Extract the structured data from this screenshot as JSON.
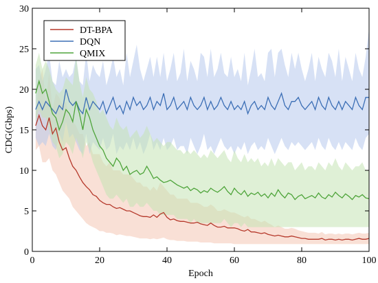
{
  "chart_data": {
    "type": "line",
    "title": "",
    "xlabel": "Epoch",
    "ylabel": "CDG(Gbps)",
    "xlim": [
      0,
      100
    ],
    "ylim": [
      0,
      30
    ],
    "xticks": [
      0,
      20,
      40,
      60,
      80,
      100
    ],
    "yticks": [
      0,
      5,
      10,
      15,
      20,
      25,
      30
    ],
    "grid": false,
    "legend_position": "top-left",
    "x": [
      1,
      2,
      3,
      4,
      5,
      6,
      7,
      8,
      9,
      10,
      11,
      12,
      13,
      14,
      15,
      16,
      17,
      18,
      19,
      20,
      21,
      22,
      23,
      24,
      25,
      26,
      27,
      28,
      29,
      30,
      31,
      32,
      33,
      34,
      35,
      36,
      37,
      38,
      39,
      40,
      41,
      42,
      43,
      44,
      45,
      46,
      47,
      48,
      49,
      50,
      51,
      52,
      53,
      54,
      55,
      56,
      57,
      58,
      59,
      60,
      61,
      62,
      63,
      64,
      65,
      66,
      67,
      68,
      69,
      70,
      71,
      72,
      73,
      74,
      75,
      76,
      77,
      78,
      79,
      80,
      81,
      82,
      83,
      84,
      85,
      86,
      87,
      88,
      89,
      90,
      91,
      92,
      93,
      94,
      95,
      96,
      97,
      98,
      99,
      100
    ],
    "series": [
      {
        "name": "DT-BPA",
        "color": "#b5382a",
        "band_color": "#f4c7b5",
        "values": [
          15.5,
          16.8,
          15.5,
          15.0,
          16.5,
          14.5,
          15.2,
          13.5,
          12.5,
          12.8,
          11.5,
          10.5,
          10.0,
          9.2,
          8.5,
          8.0,
          7.6,
          7.0,
          6.8,
          6.3,
          6.0,
          5.8,
          5.8,
          5.5,
          5.3,
          5.4,
          5.2,
          5.0,
          5.0,
          4.8,
          4.6,
          4.4,
          4.3,
          4.3,
          4.2,
          4.5,
          4.2,
          4.6,
          4.8,
          4.2,
          3.9,
          4.0,
          3.8,
          3.7,
          3.7,
          3.6,
          3.5,
          3.5,
          3.6,
          3.4,
          3.3,
          3.2,
          3.5,
          3.2,
          3.0,
          3.0,
          3.1,
          2.9,
          2.9,
          2.9,
          2.8,
          2.6,
          2.5,
          2.7,
          2.4,
          2.4,
          2.3,
          2.2,
          2.3,
          2.1,
          2.0,
          1.9,
          2.0,
          1.9,
          1.8,
          1.8,
          1.9,
          1.8,
          1.7,
          1.6,
          1.6,
          1.5,
          1.5,
          1.5,
          1.5,
          1.6,
          1.4,
          1.5,
          1.5,
          1.4,
          1.5,
          1.4,
          1.5,
          1.5,
          1.4,
          1.5,
          1.6,
          1.5,
          1.5,
          1.6
        ],
        "upper": [
          17.0,
          21.0,
          22.5,
          18.5,
          22.0,
          17.5,
          19.5,
          19.0,
          18.0,
          18.5,
          16.5,
          16.0,
          15.5,
          14.5,
          14.5,
          13.0,
          13.5,
          12.0,
          12.0,
          12.0,
          11.0,
          10.5,
          11.0,
          10.0,
          10.0,
          10.0,
          9.5,
          9.5,
          9.5,
          9.0,
          8.5,
          8.5,
          8.0,
          8.0,
          7.5,
          8.0,
          7.5,
          8.5,
          8.0,
          7.5,
          7.0,
          7.0,
          6.5,
          6.5,
          6.5,
          6.5,
          6.0,
          6.0,
          6.0,
          5.8,
          5.5,
          5.5,
          5.8,
          5.5,
          5.0,
          5.0,
          5.2,
          5.0,
          4.8,
          4.8,
          4.6,
          4.4,
          4.2,
          4.4,
          4.0,
          4.0,
          3.8,
          3.6,
          3.8,
          3.5,
          3.3,
          3.0,
          3.2,
          3.0,
          2.8,
          2.8,
          2.9,
          2.8,
          2.6,
          2.5,
          2.4,
          2.3,
          2.3,
          2.3,
          2.2,
          2.4,
          2.1,
          2.2,
          2.2,
          2.1,
          2.2,
          2.1,
          2.2,
          2.2,
          2.1,
          2.2,
          2.3,
          2.2,
          2.2,
          2.3
        ],
        "lower": [
          12.5,
          13.0,
          11.0,
          11.0,
          11.5,
          10.0,
          9.5,
          8.5,
          7.5,
          7.0,
          6.5,
          5.5,
          5.0,
          4.5,
          4.0,
          3.5,
          3.2,
          3.0,
          2.8,
          2.5,
          2.5,
          2.3,
          2.3,
          2.2,
          2.0,
          2.1,
          2.0,
          1.9,
          1.9,
          1.8,
          1.7,
          1.6,
          1.6,
          1.6,
          1.5,
          1.6,
          1.5,
          1.6,
          1.7,
          1.5,
          1.4,
          1.4,
          1.3,
          1.3,
          1.3,
          1.2,
          1.2,
          1.2,
          1.2,
          1.1,
          1.1,
          1.1,
          1.1,
          1.0,
          1.0,
          1.0,
          1.0,
          1.0,
          1.0,
          0.9,
          0.9,
          0.9,
          0.9,
          0.9,
          0.9,
          0.9,
          0.9,
          0.9,
          0.9,
          0.9,
          0.9,
          0.9,
          0.9,
          0.9,
          0.9,
          0.9,
          0.9,
          0.9,
          0.9,
          0.9,
          0.9,
          0.9,
          0.9,
          0.9,
          0.9,
          0.9,
          0.9,
          0.9,
          0.9,
          0.9,
          0.9,
          0.9,
          0.9,
          0.9,
          0.9,
          0.9,
          0.9,
          0.9,
          0.9,
          0.9
        ]
      },
      {
        "name": "DQN",
        "color": "#3b6eb5",
        "band_color": "#b7c9ec",
        "values": [
          17.5,
          18.5,
          17.5,
          18.5,
          18.0,
          17.5,
          17.0,
          18.0,
          17.5,
          20.0,
          18.5,
          18.0,
          18.5,
          17.5,
          17.0,
          19.0,
          17.5,
          18.5,
          18.0,
          17.5,
          18.5,
          17.0,
          18.0,
          19.0,
          17.5,
          18.0,
          17.0,
          18.5,
          17.5,
          19.0,
          18.0,
          18.5,
          17.5,
          18.0,
          19.0,
          17.5,
          18.5,
          18.0,
          19.5,
          17.5,
          18.0,
          19.0,
          17.5,
          18.0,
          18.5,
          17.5,
          19.0,
          18.0,
          17.5,
          18.0,
          19.0,
          17.5,
          18.5,
          17.5,
          18.0,
          19.0,
          18.0,
          17.5,
          18.5,
          17.5,
          18.0,
          17.5,
          18.5,
          17.0,
          18.0,
          18.5,
          17.5,
          18.0,
          17.5,
          19.0,
          18.0,
          17.5,
          18.5,
          19.5,
          18.0,
          17.5,
          18.5,
          18.5,
          19.0,
          18.0,
          17.5,
          18.0,
          18.5,
          17.5,
          19.0,
          18.0,
          17.5,
          19.0,
          18.0,
          17.5,
          18.5,
          17.5,
          18.5,
          18.0,
          17.5,
          19.0,
          18.0,
          17.5,
          19.0,
          19.0
        ],
        "upper": [
          22.5,
          23.0,
          21.0,
          22.5,
          24.5,
          21.0,
          20.5,
          23.5,
          21.5,
          22.5,
          21.5,
          22.0,
          24.0,
          21.0,
          20.5,
          24.5,
          21.0,
          23.0,
          22.0,
          21.5,
          23.5,
          20.5,
          22.0,
          24.0,
          21.5,
          22.5,
          20.5,
          24.5,
          21.5,
          23.5,
          25.5,
          22.5,
          21.0,
          22.5,
          24.0,
          21.5,
          24.0,
          21.5,
          24.5,
          21.0,
          22.5,
          24.5,
          21.0,
          22.0,
          25.0,
          21.0,
          23.5,
          22.5,
          21.0,
          24.5,
          24.0,
          21.5,
          25.0,
          21.5,
          22.5,
          24.5,
          22.0,
          21.5,
          24.0,
          21.5,
          22.5,
          21.0,
          24.5,
          20.5,
          22.5,
          25.0,
          21.5,
          22.0,
          21.0,
          24.5,
          25.0,
          21.5,
          24.5,
          25.0,
          23.0,
          21.5,
          24.5,
          22.5,
          24.5,
          22.5,
          21.0,
          22.5,
          24.5,
          21.0,
          24.0,
          22.5,
          21.5,
          24.5,
          23.5,
          21.5,
          25.0,
          21.0,
          24.0,
          22.5,
          21.0,
          24.5,
          22.5,
          21.5,
          24.0,
          27.5
        ],
        "lower": [
          14.0,
          13.0,
          13.5,
          13.0,
          14.5,
          13.0,
          12.5,
          14.5,
          13.5,
          16.0,
          14.0,
          14.5,
          13.5,
          12.5,
          12.0,
          14.5,
          12.0,
          13.5,
          13.0,
          12.5,
          14.0,
          12.5,
          13.0,
          14.5,
          12.0,
          13.0,
          12.5,
          13.5,
          12.5,
          14.0,
          12.5,
          13.5,
          12.0,
          13.0,
          14.5,
          12.5,
          13.5,
          12.5,
          14.0,
          12.5,
          13.0,
          14.0,
          12.5,
          13.0,
          13.0,
          12.0,
          14.0,
          13.0,
          12.0,
          13.0,
          14.5,
          12.5,
          13.0,
          12.0,
          13.0,
          14.0,
          13.0,
          12.5,
          13.0,
          12.0,
          13.0,
          12.5,
          13.5,
          12.0,
          13.0,
          13.5,
          12.5,
          13.0,
          12.5,
          14.0,
          13.0,
          12.0,
          13.0,
          14.0,
          13.0,
          12.5,
          13.5,
          13.0,
          13.5,
          13.0,
          12.5,
          13.0,
          13.5,
          12.5,
          14.0,
          13.0,
          12.5,
          14.0,
          13.0,
          12.5,
          13.5,
          12.5,
          13.5,
          13.0,
          12.5,
          14.0,
          13.0,
          12.5,
          14.0,
          14.5
        ]
      },
      {
        "name": "QMIX",
        "color": "#4ea43a",
        "band_color": "#c5e3b5",
        "values": [
          19.5,
          21.0,
          19.5,
          20.0,
          18.5,
          17.0,
          16.5,
          15.0,
          16.0,
          17.5,
          17.0,
          16.0,
          18.5,
          17.0,
          15.0,
          17.5,
          16.5,
          15.0,
          14.0,
          13.0,
          12.5,
          11.5,
          11.0,
          10.5,
          11.5,
          11.0,
          10.0,
          10.5,
          9.5,
          9.8,
          10.0,
          9.5,
          9.7,
          10.5,
          9.8,
          9.0,
          9.2,
          8.8,
          8.5,
          8.6,
          8.8,
          8.5,
          8.2,
          8.0,
          7.8,
          8.0,
          7.5,
          7.8,
          7.6,
          7.2,
          7.5,
          7.3,
          7.8,
          7.5,
          7.3,
          7.6,
          8.0,
          7.4,
          7.0,
          7.8,
          7.3,
          7.0,
          7.5,
          6.8,
          7.2,
          7.0,
          7.3,
          6.8,
          7.1,
          6.6,
          7.2,
          6.8,
          7.6,
          7.0,
          6.6,
          7.2,
          7.0,
          6.4,
          6.8,
          7.0,
          6.5,
          6.7,
          6.9,
          6.6,
          7.2,
          6.7,
          6.5,
          7.0,
          6.7,
          7.3,
          6.9,
          6.6,
          7.1,
          6.8,
          6.4,
          6.9,
          6.7,
          7.0,
          6.6,
          6.5
        ],
        "upper": [
          23.0,
          24.5,
          22.5,
          23.5,
          22.5,
          21.0,
          20.0,
          19.5,
          20.0,
          21.5,
          21.0,
          20.5,
          24.0,
          21.0,
          19.0,
          21.5,
          20.0,
          19.5,
          18.5,
          17.0,
          17.5,
          16.5,
          15.5,
          15.0,
          16.5,
          15.5,
          15.0,
          15.5,
          14.0,
          14.5,
          15.0,
          14.0,
          14.5,
          15.5,
          14.5,
          13.5,
          14.0,
          13.5,
          13.0,
          13.5,
          13.5,
          13.0,
          12.5,
          12.5,
          12.0,
          12.5,
          12.0,
          12.5,
          12.0,
          11.5,
          12.0,
          11.5,
          12.5,
          12.0,
          11.5,
          12.0,
          12.5,
          11.5,
          11.0,
          12.5,
          11.5,
          11.0,
          12.0,
          11.0,
          11.5,
          11.0,
          11.5,
          10.5,
          11.0,
          10.5,
          11.5,
          10.5,
          11.5,
          11.0,
          10.5,
          11.0,
          11.0,
          10.0,
          10.5,
          11.0,
          10.0,
          10.5,
          10.5,
          10.0,
          11.0,
          10.5,
          10.0,
          11.0,
          10.5,
          11.5,
          10.5,
          10.0,
          11.0,
          10.5,
          10.0,
          10.5,
          10.5,
          11.0,
          10.0,
          10.0
        ],
        "lower": [
          16.0,
          17.5,
          16.5,
          16.5,
          15.0,
          13.5,
          13.0,
          11.5,
          12.0,
          13.5,
          13.0,
          12.0,
          14.0,
          13.0,
          11.5,
          13.5,
          12.5,
          11.0,
          10.0,
          9.0,
          8.0,
          7.0,
          6.5,
          6.5,
          7.0,
          6.5,
          6.0,
          6.5,
          5.5,
          5.5,
          6.0,
          5.5,
          5.5,
          6.0,
          5.5,
          5.0,
          5.0,
          4.5,
          4.5,
          4.5,
          4.5,
          4.5,
          4.0,
          4.0,
          4.0,
          4.0,
          3.5,
          4.0,
          3.5,
          3.5,
          3.5,
          3.5,
          3.5,
          3.5,
          3.5,
          3.5,
          4.0,
          3.5,
          3.0,
          3.5,
          3.5,
          3.0,
          3.5,
          3.0,
          3.0,
          3.0,
          3.0,
          3.0,
          3.0,
          3.0,
          3.0,
          3.0,
          3.0,
          3.0,
          3.0,
          3.0,
          3.0,
          3.0,
          3.0,
          3.0,
          3.0,
          3.0,
          3.0,
          3.0,
          3.0,
          3.0,
          3.0,
          3.0,
          3.0,
          3.0,
          3.0,
          3.0,
          3.0,
          3.0,
          3.0,
          3.0,
          3.0,
          3.0,
          3.0,
          3.0
        ]
      }
    ]
  }
}
